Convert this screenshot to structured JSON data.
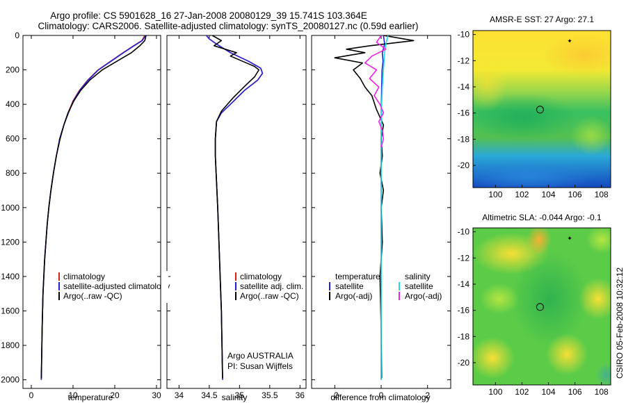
{
  "figure": {
    "title_line1": "Argo profile: CS 5901628_16 27-Jan-2008 20080129_39 15.741S 103.364E",
    "title_line2": "Climatology: CARS2006. Satellite-adjusted climatology: synTS_20080127.nc (0.59d earlier)",
    "side_label": "CSIRO 05-Feb-2008 10:32:12",
    "argo_credit": "Argo AUSTRALIA",
    "pi_credit": "PI: Susan Wijffels"
  },
  "colors": {
    "climatology": "#d62020",
    "satellite": "#2020d8",
    "argo": "#000000",
    "sat_salinity": "#22dddd",
    "argo_salinity": "#ee22ee"
  },
  "chart_data": [
    {
      "id": "temperature",
      "type": "line",
      "xlabel": "temperature",
      "ylabel": "",
      "xlim": [
        -2,
        31
      ],
      "ylim": [
        2050,
        0
      ],
      "xticks": [
        0,
        10,
        20,
        30
      ],
      "yticks": [
        0,
        200,
        400,
        600,
        800,
        1000,
        1200,
        1400,
        1600,
        1800,
        2000
      ],
      "legend": {
        "position": "lower-right",
        "labels": [
          "climatology",
          "satellite-adjusted climatology",
          "Argo(..raw -QC)"
        ]
      },
      "series": [
        {
          "name": "climatology",
          "color_key": "climatology",
          "x": [
            27.2,
            26.5,
            24.5,
            22,
            19,
            16,
            13.5,
            11.5,
            10,
            8.8,
            7.8,
            6.8,
            6,
            5.3,
            4.7,
            4.2,
            3.8,
            3.5,
            3.2,
            3,
            2.8,
            2.6,
            2.4
          ],
          "y": [
            0,
            30,
            60,
            100,
            150,
            200,
            260,
            320,
            380,
            450,
            520,
            600,
            700,
            800,
            900,
            1000,
            1100,
            1200,
            1300,
            1400,
            1500,
            1700,
            2000
          ]
        },
        {
          "name": "satellite-adjusted climatology",
          "color_key": "satellite",
          "x": [
            27.4,
            26.6,
            24.6,
            22.1,
            19.1,
            16.1,
            13.6,
            11.6,
            10.1,
            8.9,
            7.8,
            6.8,
            6,
            5.3,
            4.7,
            4.2,
            3.8,
            3.5,
            3.2,
            3,
            2.8,
            2.6,
            2.4
          ],
          "y": [
            0,
            30,
            60,
            100,
            150,
            200,
            260,
            320,
            380,
            450,
            520,
            600,
            700,
            800,
            900,
            1000,
            1100,
            1200,
            1300,
            1400,
            1500,
            1700,
            2000
          ]
        },
        {
          "name": "Argo(..raw -QC)",
          "color_key": "argo",
          "x": [
            27.5,
            27.2,
            26,
            24,
            20.5,
            17,
            14,
            11.8,
            10.2,
            8.8,
            7.8,
            6.9,
            6,
            5.3,
            4.7,
            4.2,
            3.8,
            3.5,
            3.2,
            3,
            2.8,
            2.6,
            2.4
          ],
          "y": [
            0,
            30,
            60,
            100,
            150,
            200,
            260,
            320,
            380,
            450,
            520,
            600,
            700,
            800,
            900,
            1000,
            1100,
            1200,
            1300,
            1400,
            1500,
            1700,
            1990
          ]
        }
      ]
    },
    {
      "id": "salinity",
      "type": "line",
      "xlabel": "salinity",
      "xlim": [
        33.8,
        36.1
      ],
      "ylim": [
        2050,
        0
      ],
      "xticks": [
        34,
        34.5,
        35,
        35.5,
        36
      ],
      "yticks": [
        0,
        200,
        400,
        600,
        800,
        1000,
        1200,
        1400,
        1600,
        1800,
        2000
      ],
      "legend": {
        "position": "lower-right",
        "labels": [
          "climatology",
          "satellite adj. clim.",
          "Argo(..raw -QC)"
        ]
      },
      "series": [
        {
          "name": "climatology",
          "color_key": "climatology",
          "x": [
            34.45,
            34.5,
            34.62,
            34.85,
            35.15,
            35.35,
            35.38,
            35.3,
            35.08,
            34.85,
            34.7,
            34.62,
            34.6,
            34.6,
            34.62,
            34.64,
            34.66,
            34.68,
            34.7,
            34.72
          ],
          "y": [
            0,
            20,
            50,
            100,
            150,
            190,
            220,
            260,
            320,
            400,
            450,
            500,
            600,
            700,
            850,
            1000,
            1200,
            1400,
            1600,
            2000
          ]
        },
        {
          "name": "satellite adj. clim.",
          "color_key": "satellite",
          "x": [
            34.45,
            34.5,
            34.62,
            34.85,
            35.15,
            35.35,
            35.38,
            35.3,
            35.08,
            34.85,
            34.7,
            34.62,
            34.6,
            34.6,
            34.62,
            34.64,
            34.66,
            34.68,
            34.7,
            34.72
          ],
          "y": [
            0,
            20,
            50,
            100,
            150,
            190,
            220,
            260,
            320,
            400,
            450,
            500,
            600,
            700,
            850,
            1000,
            1200,
            1400,
            1600,
            2000
          ]
        },
        {
          "name": "Argo(..raw -QC)",
          "color_key": "argo",
          "x": [
            34.55,
            34.7,
            34.58,
            34.95,
            34.85,
            35.05,
            35.25,
            35.32,
            35.25,
            35.1,
            34.9,
            34.7,
            34.62,
            34.6,
            34.6,
            34.62,
            34.64,
            34.66,
            34.68,
            34.7,
            34.72
          ],
          "y": [
            0,
            30,
            60,
            100,
            120,
            150,
            180,
            200,
            240,
            290,
            360,
            440,
            500,
            600,
            700,
            850,
            1000,
            1200,
            1400,
            1600,
            1990
          ]
        }
      ]
    },
    {
      "id": "difference",
      "type": "line",
      "xlabel": "difference from climatology",
      "xlim": [
        -3,
        3
      ],
      "ylim": [
        2050,
        0
      ],
      "xticks": [
        -2,
        0,
        2
      ],
      "yticks": [
        0,
        200,
        400,
        600,
        800,
        1000,
        1200,
        1400,
        1600,
        1800,
        2000
      ],
      "legend": {
        "position": "lower",
        "temperature_header": "temperature",
        "salinity_header": "salinity",
        "labels": [
          "satellite",
          "Argo(-adj)",
          "satellite",
          "Argo(-adj)"
        ]
      },
      "series": [
        {
          "name": "temperature satellite",
          "color_key": "satellite",
          "x": [
            0.1,
            0.15,
            0.05,
            0.08,
            0.04,
            0.02,
            0.01,
            0,
            0,
            0,
            0,
            0
          ],
          "y": [
            0,
            50,
            100,
            150,
            200,
            300,
            400,
            600,
            800,
            1200,
            1600,
            2000
          ]
        },
        {
          "name": "temperature Argo(-adj)",
          "color_key": "argo",
          "x": [
            0.1,
            1.4,
            -0.5,
            -1.5,
            -0.7,
            -2.0,
            -0.8,
            -1.2,
            -0.9,
            -0.7,
            -0.4,
            -0.2,
            0.1,
            0,
            0.05,
            -0.05,
            0.1,
            0,
            0.05,
            -0.05,
            0,
            0.02
          ],
          "y": [
            0,
            30,
            60,
            80,
            100,
            130,
            160,
            200,
            250,
            300,
            350,
            430,
            520,
            600,
            700,
            800,
            900,
            1000,
            1200,
            1400,
            1700,
            1990
          ]
        },
        {
          "name": "salinity satellite",
          "color_key": "sat_salinity",
          "x": [
            0.3,
            0.2,
            0.15,
            0.1,
            0.05,
            0.02,
            0,
            0,
            0,
            0
          ],
          "y": [
            0,
            50,
            100,
            200,
            300,
            400,
            600,
            1000,
            1500,
            2000
          ]
        },
        {
          "name": "salinity Argo(-adj)",
          "color_key": "argo_salinity",
          "x": [
            0,
            -0.2,
            0.2,
            -0.4,
            -0.7,
            -0.2,
            -0.5,
            -0.1,
            -0.3,
            -0.05,
            0.1,
            -0.1,
            0.05,
            0.1,
            0
          ],
          "y": [
            0,
            40,
            80,
            120,
            160,
            200,
            250,
            300,
            350,
            400,
            450,
            500,
            550,
            600,
            650
          ]
        }
      ]
    },
    {
      "id": "sst_map",
      "type": "heatmap",
      "title": "AMSR-E SST: 27 Argo: 27.1",
      "xlim": [
        98.3,
        108.7
      ],
      "ylim": [
        -21.7,
        -9.7
      ],
      "xticks": [
        100,
        102,
        104,
        106,
        108
      ],
      "yticks": [
        -10,
        -12,
        -14,
        -16,
        -18,
        -20
      ],
      "float_position": {
        "lon": 103.364,
        "lat": -15.741
      },
      "marker": {
        "lon": 105.6,
        "lat": -10.5
      }
    },
    {
      "id": "sla_map",
      "type": "heatmap",
      "title": "Altimetric SLA: -0.044 Argo: -0.1",
      "xlim": [
        98.3,
        108.7
      ],
      "ylim": [
        -21.7,
        -9.7
      ],
      "xticks": [
        100,
        102,
        104,
        106,
        108
      ],
      "yticks": [
        -10,
        -12,
        -14,
        -16,
        -18,
        -20
      ],
      "float_position": {
        "lon": 103.364,
        "lat": -15.741
      },
      "marker": {
        "lon": 105.6,
        "lat": -10.5
      }
    }
  ]
}
